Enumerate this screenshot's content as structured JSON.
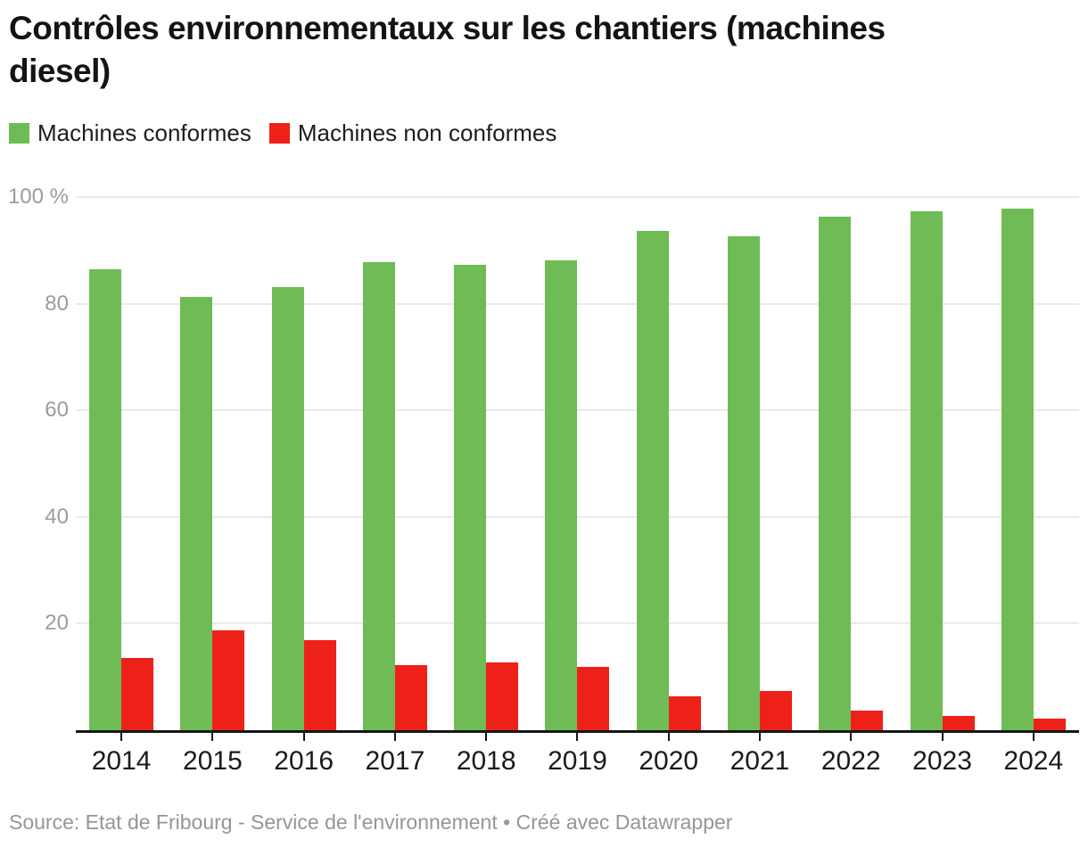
{
  "title": {
    "text": "Contrôles environnementaux sur les chantiers (machines diesel)",
    "lines": [
      "Contrôles environnementaux sur les chantiers (machines",
      "diesel)"
    ]
  },
  "legend": {
    "items": [
      {
        "label": "Machines conformes",
        "color": "#6fbc56"
      },
      {
        "label": "Machines non conformes",
        "color": "#ee2119"
      }
    ]
  },
  "chart_data": {
    "type": "bar",
    "bar_layout": "grouped",
    "title": "Contrôles environnementaux sur les chantiers (machines diesel)",
    "categories": [
      "2014",
      "2015",
      "2016",
      "2017",
      "2018",
      "2019",
      "2020",
      "2021",
      "2022",
      "2023",
      "2024"
    ],
    "series": [
      {
        "name": "Machines conformes",
        "color": "#6fbc56",
        "values": [
          86.4,
          81.2,
          83.1,
          87.8,
          87.3,
          88.1,
          93.7,
          92.7,
          96.3,
          97.4,
          97.8
        ]
      },
      {
        "name": "Machines non conformes",
        "color": "#ee2119",
        "values": [
          13.6,
          18.8,
          16.9,
          12.2,
          12.7,
          11.9,
          6.3,
          7.3,
          3.7,
          2.6,
          2.2
        ]
      }
    ],
    "unit": "%",
    "ylim": [
      0,
      100
    ],
    "y_ticks": [
      {
        "value": 100,
        "label": "100 %"
      },
      {
        "value": 80,
        "label": "80"
      },
      {
        "value": 60,
        "label": "60"
      },
      {
        "value": 40,
        "label": "40"
      },
      {
        "value": 20,
        "label": "20"
      }
    ],
    "grid": "horizontal",
    "legend_position": "top-left"
  },
  "footer": {
    "source_label": "Source: Etat de Fribourg - Service de l'environnement",
    "separator": "•",
    "credit": "Créé avec Datawrapper"
  }
}
